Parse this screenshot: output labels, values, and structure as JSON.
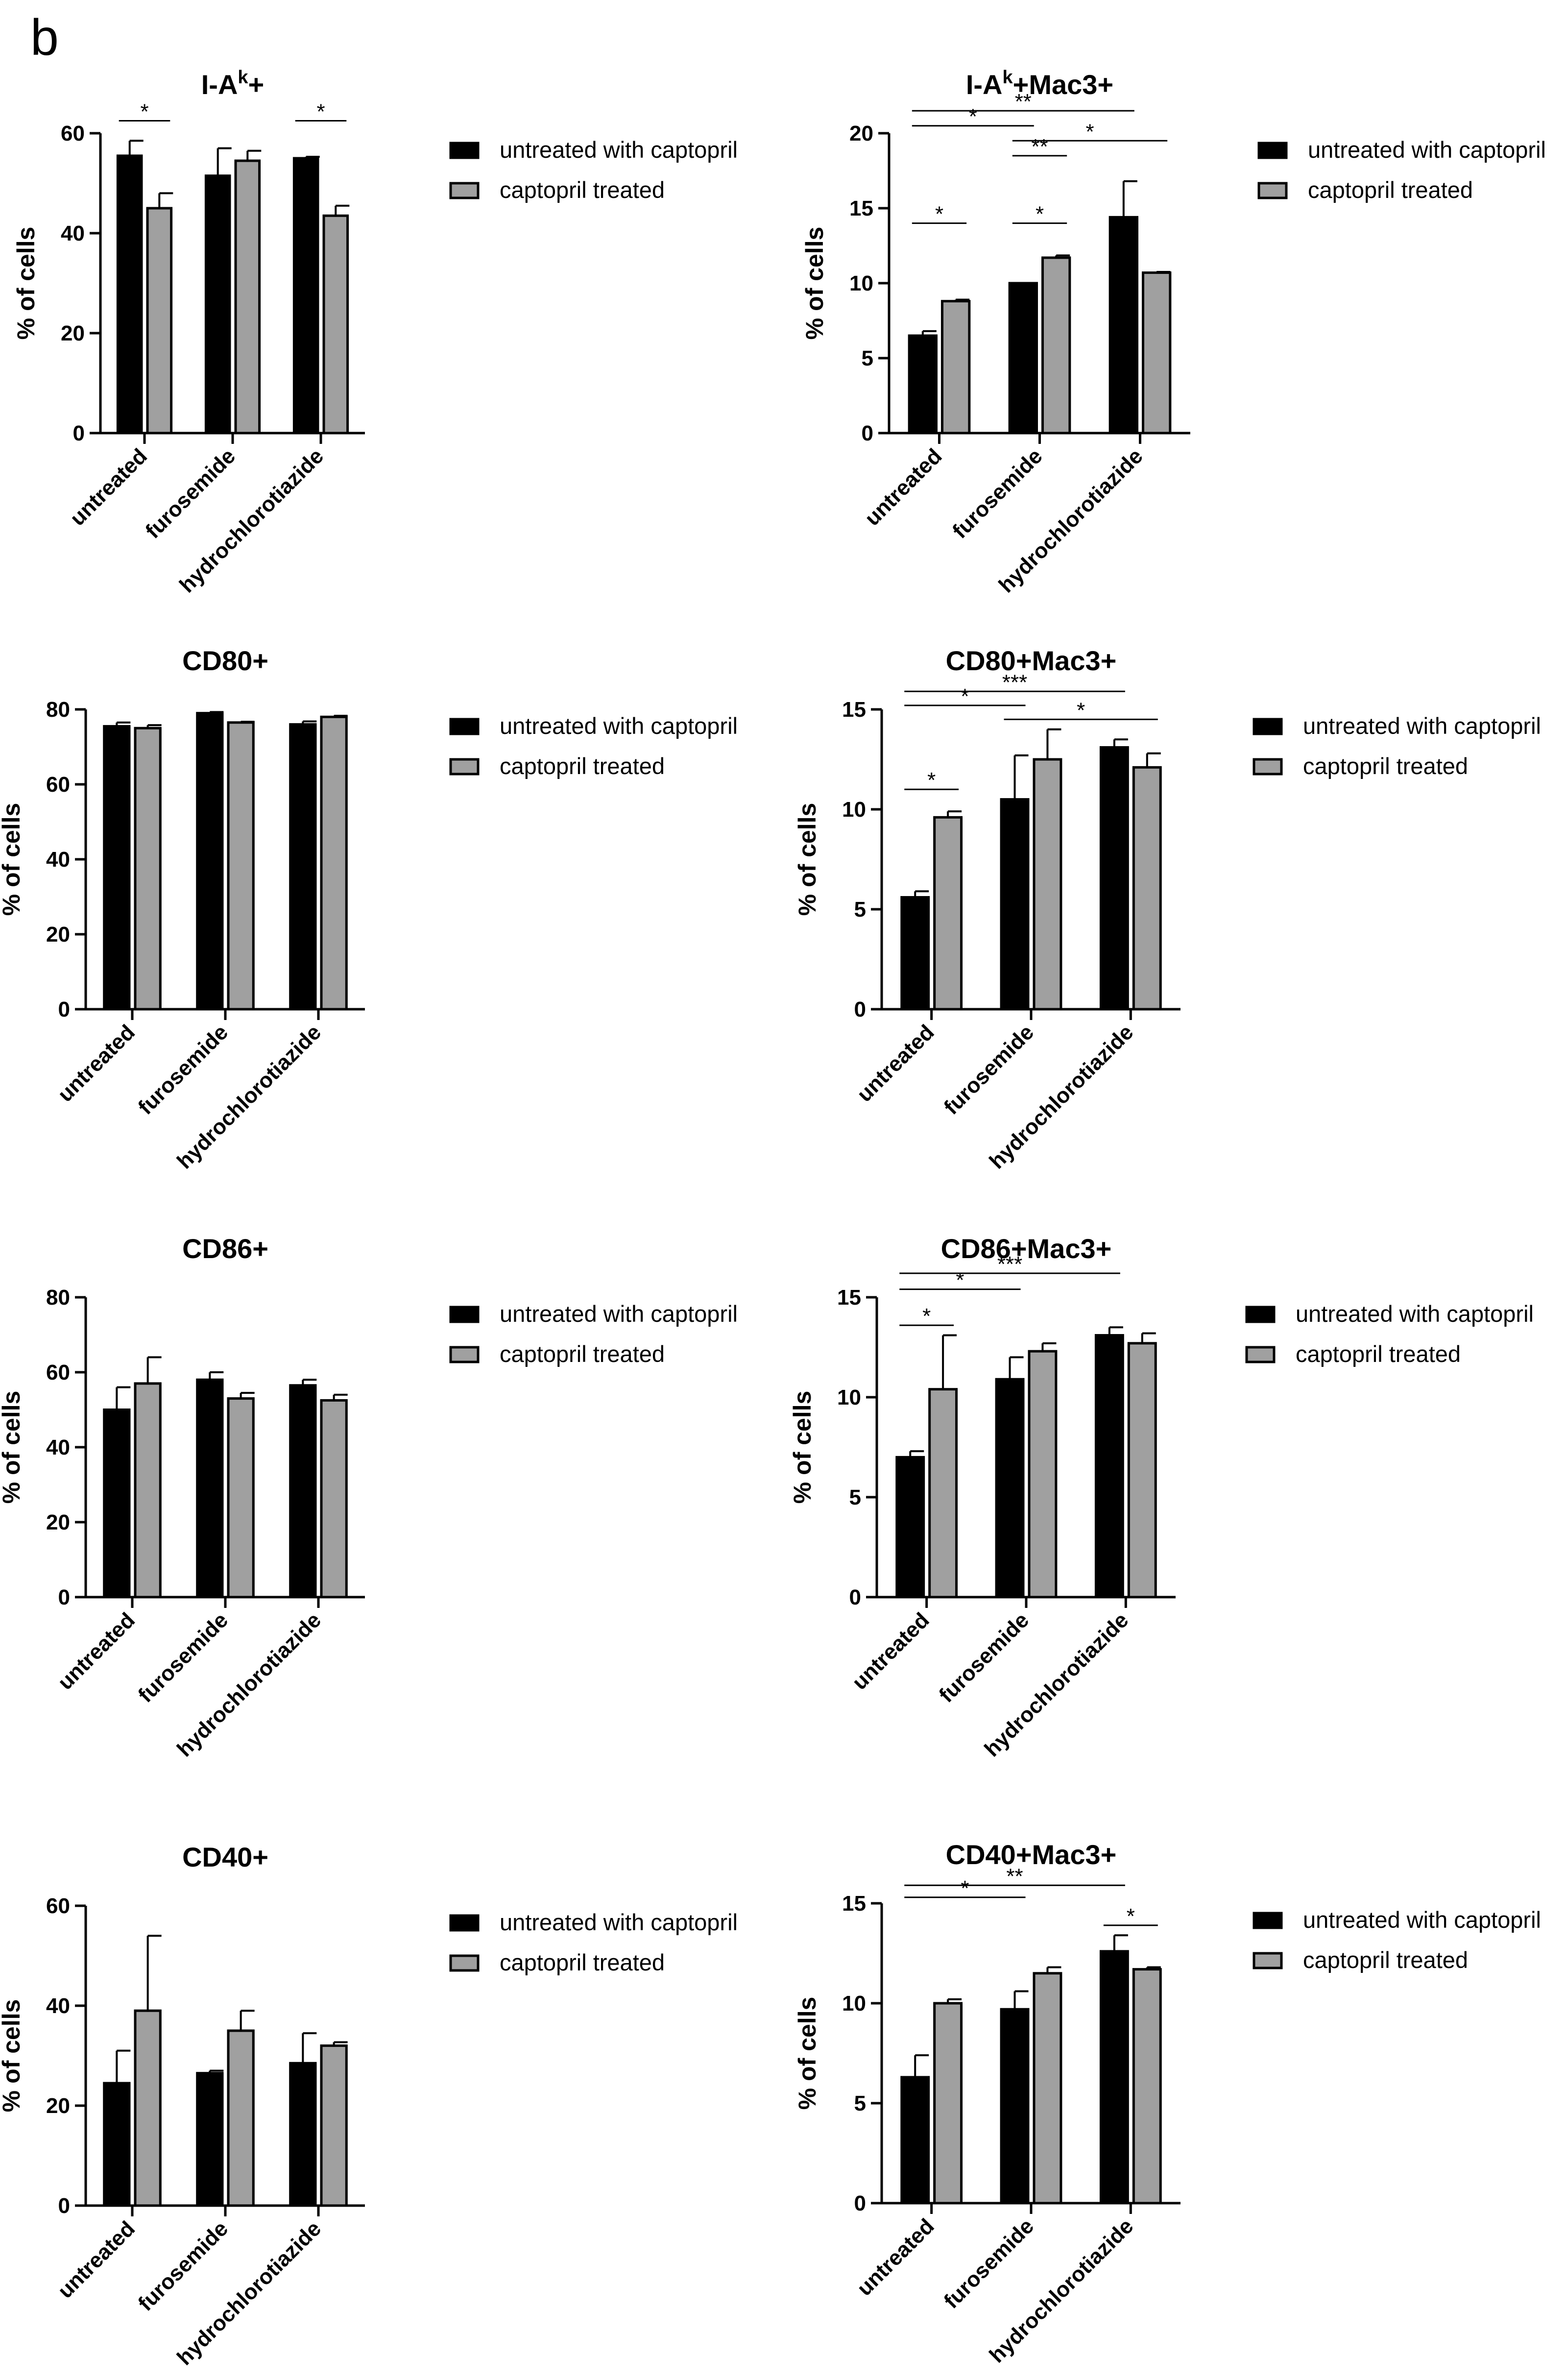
{
  "panel_label": "b",
  "colors": {
    "untreated_with_captopril": "#000000",
    "captopril_treated": "#a0a0a0"
  },
  "chart_data": [
    {
      "type": "bar",
      "title": "I-A",
      "title_sup": "k",
      "title_tail": "+",
      "ylabel": "% of cells",
      "ylim": [
        0,
        60
      ],
      "yticks": [
        0,
        20,
        40,
        60
      ],
      "categories": [
        "untreated",
        "furosemide",
        "hydrochlorotiazide"
      ],
      "series": [
        {
          "name": "untreated with captopril",
          "values": [
            55.5,
            51.5,
            55.0
          ],
          "errors": [
            3.0,
            5.5,
            0.3
          ]
        },
        {
          "name": "captopril treated",
          "values": [
            45.0,
            54.5,
            43.5
          ],
          "errors": [
            3.0,
            2.0,
            2.0
          ]
        }
      ],
      "annotations": [
        {
          "label": "*",
          "from": [
            0,
            0
          ],
          "to": [
            0,
            1
          ],
          "height": 62.5
        },
        {
          "label": "*",
          "from": [
            2,
            0
          ],
          "to": [
            2,
            1
          ],
          "height": 62.5
        }
      ]
    },
    {
      "type": "bar",
      "title": "I-A",
      "title_sup": "k",
      "title_tail": "+Mac3+",
      "ylabel": "% of cells",
      "ylim": [
        0,
        20
      ],
      "yticks": [
        0,
        5,
        10,
        15,
        20
      ],
      "categories": [
        "untreated",
        "furosemide",
        "hydrochlorotiazide"
      ],
      "series": [
        {
          "name": "untreated with captopril",
          "values": [
            6.5,
            10.0,
            14.4
          ],
          "errors": [
            0.3,
            0.0,
            2.4
          ]
        },
        {
          "name": "captopril treated",
          "values": [
            8.8,
            11.7,
            10.7
          ],
          "errors": [
            0.1,
            0.15,
            0.05
          ]
        }
      ],
      "annotations": [
        {
          "label": "**",
          "from": [
            0,
            0
          ],
          "to": [
            2,
            0
          ],
          "height": 21.5
        },
        {
          "label": "*",
          "from": [
            0,
            0
          ],
          "to": [
            1,
            0
          ],
          "height": 20.5
        },
        {
          "label": "*",
          "from": [
            1,
            0
          ],
          "to": [
            2,
            1
          ],
          "height": 19.5
        },
        {
          "label": "**",
          "from": [
            1,
            0
          ],
          "to": [
            1,
            1
          ],
          "height": 18.5
        },
        {
          "label": "*",
          "from": [
            0,
            0
          ],
          "to": [
            0,
            1
          ],
          "height": 14.0
        },
        {
          "label": "*",
          "from": [
            1,
            0
          ],
          "to": [
            1,
            1
          ],
          "height": 14.0
        }
      ]
    },
    {
      "type": "bar",
      "title": "CD80+",
      "ylabel": "% of cells",
      "ylim": [
        0,
        80
      ],
      "yticks": [
        0,
        20,
        40,
        60,
        80
      ],
      "categories": [
        "untreated",
        "furosemide",
        "hydrochlorotiazide"
      ],
      "series": [
        {
          "name": "untreated with captopril",
          "values": [
            75.5,
            79.0,
            76.0
          ],
          "errors": [
            1.0,
            0.3,
            0.8
          ]
        },
        {
          "name": "captopril treated",
          "values": [
            75.0,
            76.5,
            78.0
          ],
          "errors": [
            0.8,
            0.2,
            0.3
          ]
        }
      ],
      "annotations": []
    },
    {
      "type": "bar",
      "title": "CD80+Mac3+",
      "ylabel": "% of cells",
      "ylim": [
        0,
        15
      ],
      "yticks": [
        0,
        5,
        10,
        15
      ],
      "categories": [
        "untreated",
        "furosemide",
        "hydrochlorotiazide"
      ],
      "series": [
        {
          "name": "untreated with captopril",
          "values": [
            5.6,
            10.5,
            13.1
          ],
          "errors": [
            0.3,
            2.2,
            0.4
          ]
        },
        {
          "name": "captopril treated",
          "values": [
            9.6,
            12.5,
            12.1
          ],
          "errors": [
            0.3,
            1.5,
            0.7
          ]
        }
      ],
      "annotations": [
        {
          "label": "***",
          "from": [
            0,
            0
          ],
          "to": [
            2,
            0
          ],
          "height": 15.9
        },
        {
          "label": "*",
          "from": [
            0,
            0
          ],
          "to": [
            1,
            0
          ],
          "height": 15.2
        },
        {
          "label": "*",
          "from": [
            1,
            0
          ],
          "to": [
            2,
            1
          ],
          "height": 14.5
        },
        {
          "label": "*",
          "from": [
            0,
            0
          ],
          "to": [
            0,
            1
          ],
          "height": 11.0
        }
      ]
    },
    {
      "type": "bar",
      "title": "CD86+",
      "ylabel": "% of cells",
      "ylim": [
        0,
        80
      ],
      "yticks": [
        0,
        20,
        40,
        60,
        80
      ],
      "categories": [
        "untreated",
        "furosemide",
        "hydrochlorotiazide"
      ],
      "series": [
        {
          "name": "untreated with captopril",
          "values": [
            50.0,
            58.0,
            56.5
          ],
          "errors": [
            6.0,
            2.0,
            1.5
          ]
        },
        {
          "name": "captopril treated",
          "values": [
            57.0,
            53.0,
            52.5
          ],
          "errors": [
            7.0,
            1.5,
            1.5
          ]
        }
      ],
      "annotations": []
    },
    {
      "type": "bar",
      "title": "CD86+Mac3+",
      "ylabel": "% of cells",
      "ylim": [
        0,
        15
      ],
      "yticks": [
        0,
        5,
        10,
        15
      ],
      "categories": [
        "untreated",
        "furosemide",
        "hydrochlorotiazide"
      ],
      "series": [
        {
          "name": "untreated with captopril",
          "values": [
            7.0,
            10.9,
            13.1
          ],
          "errors": [
            0.3,
            1.1,
            0.4
          ]
        },
        {
          "name": "captopril treated",
          "values": [
            10.4,
            12.3,
            12.7
          ],
          "errors": [
            2.7,
            0.4,
            0.5
          ]
        }
      ],
      "annotations": [
        {
          "label": "***",
          "from": [
            0,
            0
          ],
          "to": [
            2,
            0
          ],
          "height": 16.2
        },
        {
          "label": "*",
          "from": [
            0,
            0
          ],
          "to": [
            1,
            0
          ],
          "height": 15.4
        },
        {
          "label": "*",
          "from": [
            0,
            0
          ],
          "to": [
            0,
            1
          ],
          "height": 13.6
        }
      ]
    },
    {
      "type": "bar",
      "title": "CD40+",
      "ylabel": "% of cells",
      "ylim": [
        0,
        60
      ],
      "yticks": [
        0,
        20,
        40,
        60
      ],
      "categories": [
        "untreated",
        "furosemide",
        "hydrochlorotiazide"
      ],
      "series": [
        {
          "name": "untreated with captopril",
          "values": [
            24.5,
            26.5,
            28.5
          ],
          "errors": [
            6.5,
            0.5,
            6.0
          ]
        },
        {
          "name": "captopril treated",
          "values": [
            39.0,
            35.0,
            32.0
          ],
          "errors": [
            15.0,
            4.0,
            0.7
          ]
        }
      ],
      "annotations": []
    },
    {
      "type": "bar",
      "title": "CD40+Mac3+",
      "ylabel": "% of cells",
      "ylim": [
        0,
        15
      ],
      "yticks": [
        0,
        5,
        10,
        15
      ],
      "categories": [
        "untreated",
        "furosemide",
        "hydrochlorotiazide"
      ],
      "series": [
        {
          "name": "untreated with captopril",
          "values": [
            6.3,
            9.7,
            12.6
          ],
          "errors": [
            1.1,
            0.9,
            0.8
          ]
        },
        {
          "name": "captopril treated",
          "values": [
            10.0,
            11.5,
            11.7
          ],
          "errors": [
            0.2,
            0.3,
            0.1
          ]
        }
      ],
      "annotations": [
        {
          "label": "**",
          "from": [
            0,
            0
          ],
          "to": [
            2,
            0
          ],
          "height": 15.9
        },
        {
          "label": "*",
          "from": [
            0,
            0
          ],
          "to": [
            1,
            0
          ],
          "height": 15.3
        },
        {
          "label": "*",
          "from": [
            2,
            0
          ],
          "to": [
            2,
            1
          ],
          "height": 13.9
        }
      ]
    }
  ]
}
